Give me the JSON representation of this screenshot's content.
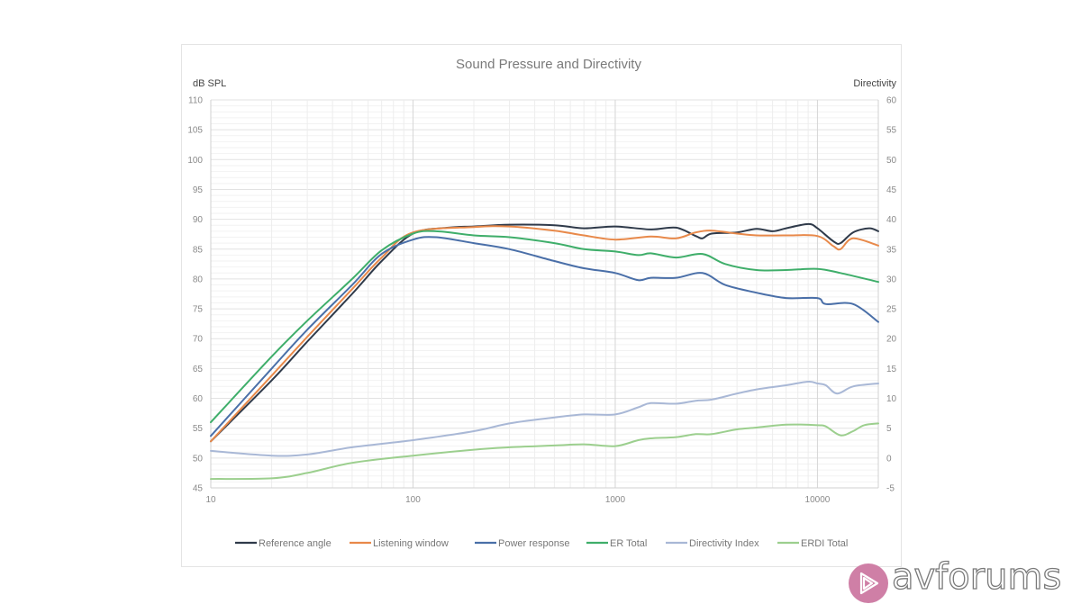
{
  "chart_data": {
    "type": "line",
    "title": "Sound Pressure and Directivity",
    "ylabel": "dB SPL",
    "y2label": "Directivity",
    "xscale": "log",
    "xlim": [
      10,
      20000
    ],
    "ylim": [
      45,
      110
    ],
    "y2lim": [
      -5,
      60
    ],
    "x_tick_labels": [
      "10",
      "100",
      "1000",
      "10000"
    ],
    "x_ticks": [
      10,
      100,
      1000,
      10000
    ],
    "y_ticks": [
      45,
      50,
      55,
      60,
      65,
      70,
      75,
      80,
      85,
      90,
      95,
      100,
      105,
      110
    ],
    "y2_ticks": [
      -5,
      0,
      5,
      10,
      15,
      20,
      25,
      30,
      35,
      40,
      45,
      50,
      55,
      60
    ],
    "grid": true,
    "legend_position": "bottom",
    "series": [
      {
        "name": "Reference angle",
        "axis": "left",
        "color": "#2f3a4a",
        "x": [
          10,
          20,
          30,
          50,
          70,
          100,
          150,
          200,
          300,
          500,
          700,
          1000,
          1500,
          2000,
          2500,
          2700,
          3000,
          4000,
          5000,
          6000,
          7000,
          9000,
          10000,
          12000,
          13000,
          15000,
          18000,
          20000
        ],
        "y": [
          52.8,
          63,
          69.5,
          77.5,
          83,
          87.6,
          88.6,
          88.8,
          89.1,
          89.0,
          88.5,
          88.8,
          88.3,
          88.6,
          87.2,
          86.8,
          87.6,
          87.8,
          88.4,
          88.0,
          88.5,
          89.2,
          88.5,
          86.3,
          86.0,
          87.8,
          88.5,
          88.0
        ]
      },
      {
        "name": "Listening window",
        "axis": "left",
        "color": "#e8894a",
        "x": [
          10,
          20,
          30,
          50,
          70,
          100,
          200,
          300,
          500,
          700,
          1000,
          1500,
          2000,
          2500,
          3000,
          4000,
          5000,
          7000,
          10000,
          12000,
          13000,
          15000,
          20000
        ],
        "y": [
          52.8,
          63.8,
          70.3,
          78.3,
          83.6,
          87.8,
          88.7,
          88.8,
          88.1,
          87.3,
          86.6,
          87.1,
          86.8,
          87.8,
          88.1,
          87.6,
          87.3,
          87.3,
          87.2,
          85.5,
          85.0,
          86.8,
          85.6
        ]
      },
      {
        "name": "Power response",
        "axis": "left",
        "color": "#4a6fa8",
        "x": [
          10,
          20,
          30,
          50,
          70,
          100,
          130,
          200,
          300,
          500,
          700,
          1000,
          1300,
          1500,
          2000,
          2700,
          3500,
          5000,
          7000,
          10000,
          11000,
          15000,
          20000
        ],
        "y": [
          53.7,
          65,
          71.5,
          79,
          84.2,
          86.6,
          87.0,
          86.0,
          85.0,
          83.0,
          81.8,
          81.0,
          79.8,
          80.2,
          80.2,
          81.0,
          79.0,
          77.7,
          76.8,
          76.8,
          75.8,
          75.8,
          72.8
        ]
      },
      {
        "name": "ER Total",
        "axis": "left",
        "color": "#3fae6a",
        "x": [
          10,
          20,
          30,
          50,
          70,
          100,
          130,
          200,
          300,
          500,
          700,
          1000,
          1300,
          1500,
          2000,
          2700,
          3500,
          5000,
          7000,
          10000,
          13000,
          20000
        ],
        "y": [
          56,
          67,
          73,
          80,
          84.8,
          87.6,
          88.0,
          87.3,
          87.0,
          86.0,
          85.0,
          84.6,
          84.0,
          84.3,
          83.6,
          84.2,
          82.5,
          81.5,
          81.5,
          81.7,
          81.0,
          79.5
        ]
      },
      {
        "name": "Directivity Index",
        "axis": "right",
        "color": "#a9b8d6",
        "x": [
          10,
          20,
          30,
          50,
          100,
          200,
          300,
          500,
          700,
          1000,
          1300,
          1500,
          2000,
          2500,
          3000,
          4000,
          5000,
          7000,
          9000,
          10000,
          11000,
          12500,
          15000,
          20000
        ],
        "y": [
          1.2,
          0.4,
          0.6,
          1.8,
          3.0,
          4.5,
          5.8,
          6.8,
          7.3,
          7.3,
          8.5,
          9.2,
          9.1,
          9.6,
          9.8,
          10.8,
          11.5,
          12.2,
          12.8,
          12.5,
          12.2,
          10.8,
          12.0,
          12.5
        ]
      },
      {
        "name": "ERDI Total",
        "axis": "right",
        "color": "#9ccf8e",
        "x": [
          10,
          20,
          30,
          50,
          100,
          200,
          300,
          500,
          700,
          1000,
          1300,
          1500,
          2000,
          2500,
          3000,
          4000,
          5000,
          7000,
          10000,
          11000,
          13000,
          15000,
          17000,
          20000
        ],
        "y": [
          -3.5,
          -3.4,
          -2.5,
          -0.8,
          0.4,
          1.4,
          1.8,
          2.1,
          2.3,
          2.0,
          3.0,
          3.3,
          3.5,
          4.0,
          4.0,
          4.8,
          5.1,
          5.6,
          5.5,
          5.3,
          3.8,
          4.5,
          5.5,
          5.8
        ]
      }
    ]
  },
  "watermark": {
    "brand": "avforums",
    "logo_color": "#cf7fa6"
  }
}
